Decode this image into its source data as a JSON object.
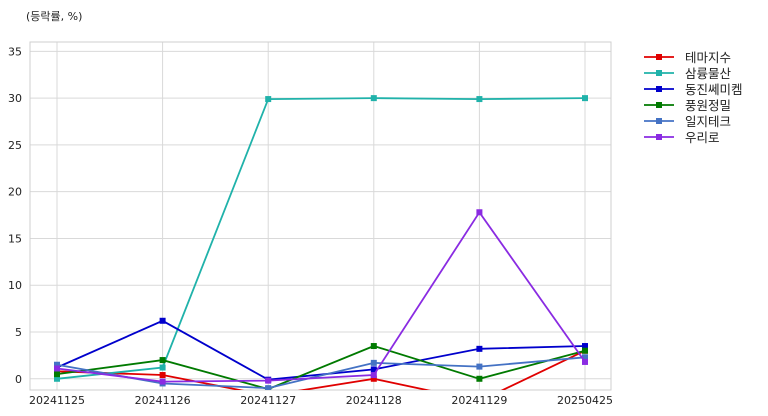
{
  "chart_data": {
    "type": "line",
    "ylabel": "(등락률, %)",
    "categories": [
      "20241125",
      "20241126",
      "20241127",
      "20241128",
      "20241129",
      "20250425"
    ],
    "yticks": [
      0,
      5,
      10,
      15,
      20,
      25,
      30,
      35
    ],
    "ylim": [
      -1.2,
      36
    ],
    "grid": true,
    "legend": "outside-right",
    "series": [
      {
        "name": "테마지수",
        "color": "#e00000",
        "values": [
          0.8,
          0.4,
          -1.8,
          0.0,
          -2.4,
          3.0
        ]
      },
      {
        "name": "삼륭물산",
        "color": "#20b2aa",
        "values": [
          0.0,
          1.2,
          29.9,
          30.0,
          29.9,
          30.0
        ]
      },
      {
        "name": "동진쎄미켐",
        "color": "#0000cc",
        "values": [
          1.2,
          6.2,
          -0.1,
          1.0,
          3.2,
          3.5
        ]
      },
      {
        "name": "풍원정밀",
        "color": "#007a00",
        "values": [
          0.5,
          2.0,
          -1.1,
          3.5,
          0.0,
          3.0
        ]
      },
      {
        "name": "일지테크",
        "color": "#4472c4",
        "values": [
          1.5,
          -0.5,
          -1.0,
          1.7,
          1.3,
          2.3
        ]
      },
      {
        "name": "우리로",
        "color": "#8a2be2",
        "values": [
          1.1,
          -0.3,
          -0.2,
          0.4,
          17.8,
          1.8
        ]
      }
    ]
  }
}
